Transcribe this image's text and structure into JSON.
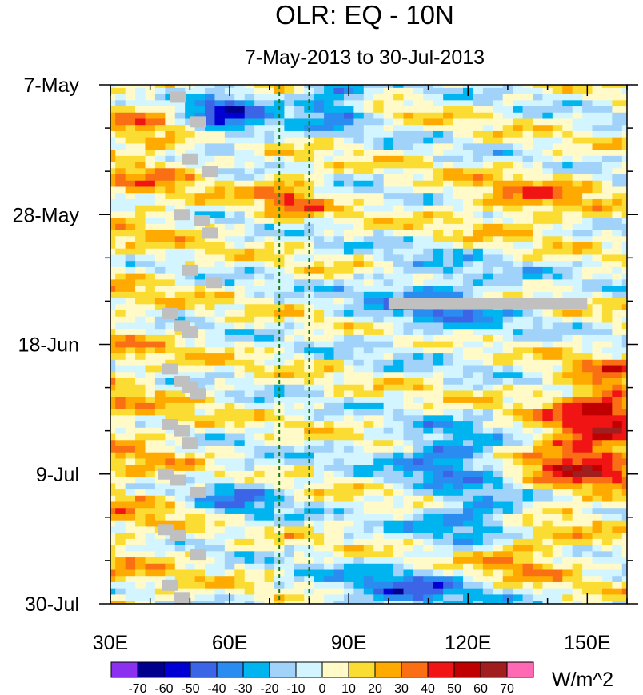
{
  "chart_data": {
    "type": "heatmap",
    "title": "OLR: EQ - 10N",
    "subtitle": "7-May-2013 to 30-Jul-2013",
    "x_axis": {
      "range": [
        30,
        160
      ],
      "ticks": [
        30,
        60,
        90,
        120,
        150
      ],
      "tick_labels": [
        "30E",
        "60E",
        "90E",
        "120E",
        "150E"
      ],
      "minor_step": 10
    },
    "y_axis": {
      "range_days": [
        0,
        84
      ],
      "ticks": [
        0,
        21,
        42,
        63,
        84
      ],
      "tick_labels": [
        "7-May",
        "28-May",
        "18-Jun",
        "9-Jul",
        "30-Jul"
      ],
      "minor_step": 7,
      "direction": "time increases downward"
    },
    "reference_lines": [
      {
        "lon": 72.5,
        "style": "dashed",
        "color": "#1a7a1a"
      },
      {
        "lon": 80,
        "style": "dashed",
        "color": "#1a7a1a"
      }
    ],
    "colorbar": {
      "unit_label": "W/m^2",
      "levels": [
        -70,
        -60,
        -50,
        -40,
        -30,
        -20,
        -10,
        0,
        10,
        20,
        30,
        40,
        50,
        60,
        70
      ],
      "level_labels": [
        "-70",
        "-60",
        "-50",
        "-40",
        "-30",
        "-20",
        "-10",
        "0",
        "10",
        "20",
        "30",
        "40",
        "50",
        "60",
        "70"
      ],
      "colors": [
        "#8c30f0",
        "#00008c",
        "#0000d2",
        "#3c64e6",
        "#2a8cf0",
        "#00b4f0",
        "#a0d2fa",
        "#d2f5ff",
        "#fffac8",
        "#fadc32",
        "#ffaa00",
        "#fa6e14",
        "#f01414",
        "#c00000",
        "#a01e1e",
        "#ff69b4"
      ]
    },
    "missing_color": "#c0c0c0",
    "field": {
      "lon_step": 2.5,
      "day_step": 1,
      "description": "OLR anomaly (W/m^2) on longitude x day grid; alternating positive (yellow/orange/red) and negative (blue) bands propagating eastward; strongest positive anomalies near 140-160E in late June and early July; strongest negative anomalies near 50-65E mid-May and 110-130E in July"
    }
  }
}
